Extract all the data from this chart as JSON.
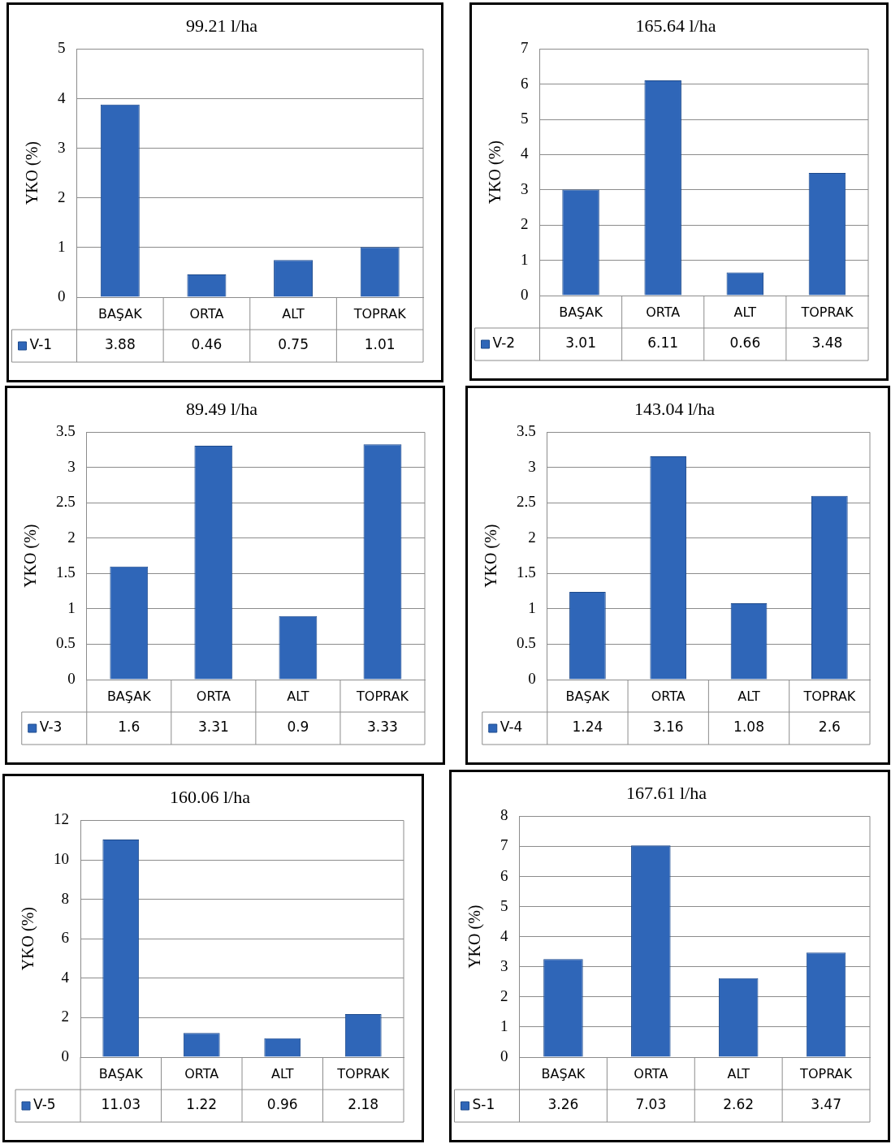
{
  "chart_data": [
    {
      "type": "bar",
      "title": "99.21 l/ha",
      "ylabel": "YKO (%)",
      "categories": [
        "BAŞAK",
        "ORTA",
        "ALT",
        "TOPRAK"
      ],
      "series": [
        {
          "name": "V-1",
          "color": "#2f66b8",
          "values": [
            3.88,
            0.46,
            0.75,
            1.01
          ]
        }
      ],
      "ylim": [
        0,
        5
      ],
      "yticks": [
        0,
        1,
        2,
        3,
        4,
        5
      ],
      "grid": "y",
      "legend": "bottom",
      "data_labels": true
    },
    {
      "type": "bar",
      "title": "165.64 l/ha",
      "ylabel": "YKO (%)",
      "categories": [
        "BAŞAK",
        "ORTA",
        "ALT",
        "TOPRAK"
      ],
      "series": [
        {
          "name": "V-2",
          "color": "#2f66b8",
          "values": [
            3.01,
            6.11,
            0.66,
            3.48
          ]
        }
      ],
      "ylim": [
        0,
        7
      ],
      "yticks": [
        0,
        1,
        2,
        3,
        4,
        5,
        6,
        7
      ],
      "grid": "y",
      "legend": "bottom",
      "data_labels": true
    },
    {
      "type": "bar",
      "title": "89.49 l/ha",
      "ylabel": "YKO (%)",
      "categories": [
        "BAŞAK",
        "ORTA",
        "ALT",
        "TOPRAK"
      ],
      "series": [
        {
          "name": "V-3",
          "color": "#2f66b8",
          "values": [
            1.6,
            3.31,
            0.9,
            3.33
          ]
        }
      ],
      "ylim": [
        0,
        3.5
      ],
      "yticks": [
        0,
        0.5,
        1,
        1.5,
        2,
        2.5,
        3,
        3.5
      ],
      "grid": "y",
      "legend": "bottom",
      "data_labels": true
    },
    {
      "type": "bar",
      "title": "143.04 l/ha",
      "ylabel": "YKO (%)",
      "categories": [
        "BAŞAK",
        "ORTA",
        "ALT",
        "TOPRAK"
      ],
      "series": [
        {
          "name": "V-4",
          "color": "#2f66b8",
          "values": [
            1.24,
            3.16,
            1.08,
            2.6
          ]
        }
      ],
      "ylim": [
        0,
        3.5
      ],
      "yticks": [
        0,
        0.5,
        1,
        1.5,
        2,
        2.5,
        3,
        3.5
      ],
      "grid": "y",
      "legend": "bottom",
      "data_labels": true
    },
    {
      "type": "bar",
      "title": "160.06 l/ha",
      "ylabel": "YKO (%)",
      "categories": [
        "BAŞAK",
        "ORTA",
        "ALT",
        "TOPRAK"
      ],
      "series": [
        {
          "name": "V-5",
          "color": "#2f66b8",
          "values": [
            11.03,
            1.22,
            0.96,
            2.18
          ]
        }
      ],
      "ylim": [
        0,
        12
      ],
      "yticks": [
        0,
        2,
        4,
        6,
        8,
        10,
        12
      ],
      "grid": "y",
      "legend": "bottom",
      "data_labels": true
    },
    {
      "type": "bar",
      "title": "167.61 l/ha",
      "ylabel": "YKO (%)",
      "categories": [
        "BAŞAK",
        "ORTA",
        "ALT",
        "TOPRAK"
      ],
      "series": [
        {
          "name": "S-1",
          "color": "#2f66b8",
          "values": [
            3.26,
            7.03,
            2.62,
            3.47
          ]
        }
      ],
      "ylim": [
        0,
        8
      ],
      "yticks": [
        0,
        1,
        2,
        3,
        4,
        5,
        6,
        7,
        8
      ],
      "grid": "y",
      "legend": "bottom",
      "data_labels": true
    }
  ]
}
